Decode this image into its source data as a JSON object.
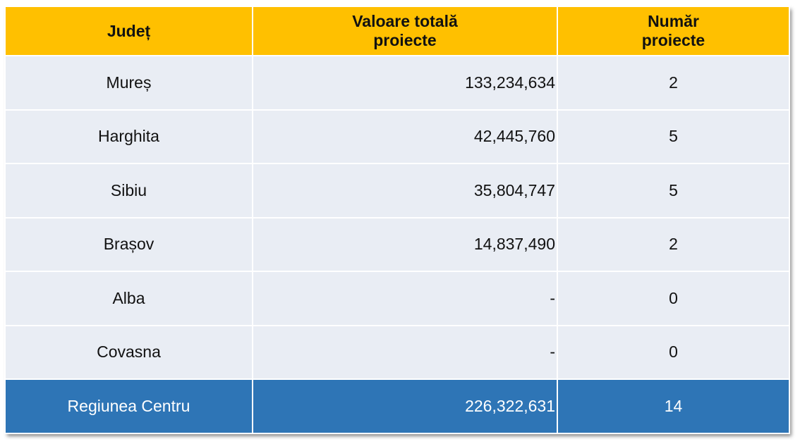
{
  "header": {
    "col1": "Județ",
    "col2_line1": "Valoare totală",
    "col2_line2": "proiecte",
    "col3_line1": "Număr",
    "col3_line2": "proiecte"
  },
  "rows": [
    {
      "judet": "Mureș",
      "valoare": "133,234,634",
      "numar": "2"
    },
    {
      "judet": "Harghita",
      "valoare": "42,445,760",
      "numar": "5"
    },
    {
      "judet": "Sibiu",
      "valoare": "35,804,747",
      "numar": "5"
    },
    {
      "judet": "Brașov",
      "valoare": "14,837,490",
      "numar": "2"
    },
    {
      "judet": "Alba",
      "valoare": "-",
      "numar": "0"
    },
    {
      "judet": "Covasna",
      "valoare": "-",
      "numar": "0"
    }
  ],
  "total": {
    "judet": "Regiunea Centru",
    "valoare": "226,322,631",
    "numar": "14"
  },
  "colors": {
    "header_bg": "#ffc000",
    "row_bg": "#e9edf4",
    "total_bg": "#2e75b6",
    "total_text": "#ffffff"
  }
}
